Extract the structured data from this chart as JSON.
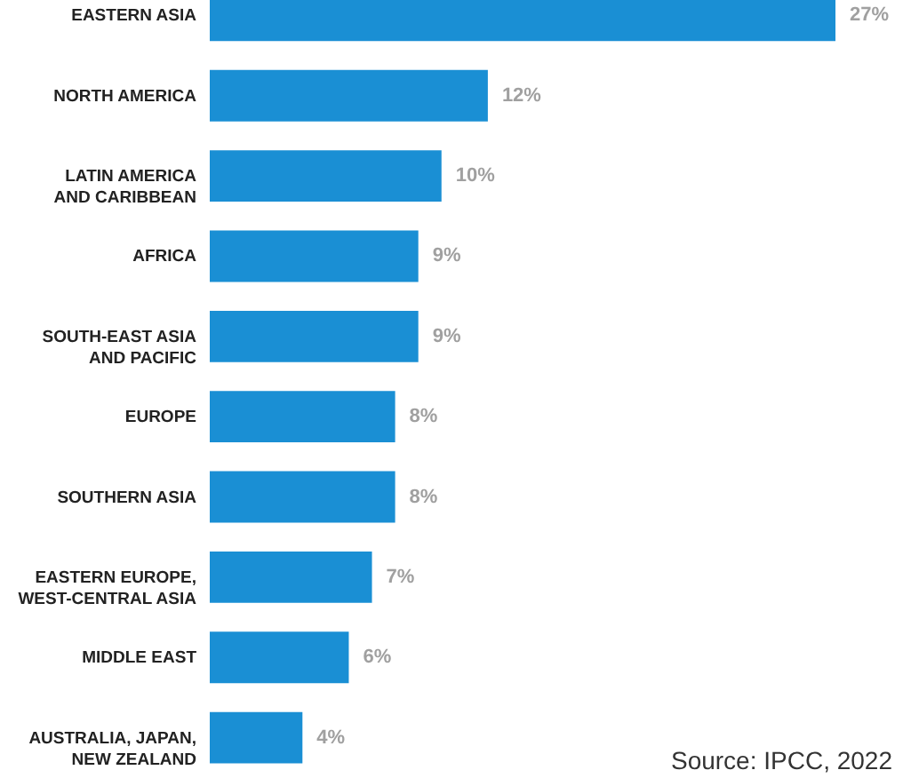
{
  "chart_data": {
    "type": "bar",
    "orientation": "horizontal",
    "categories": [
      "EASTERN ASIA",
      "NORTH AMERICA",
      "LATIN AMERICA\nAND CARIBBEAN",
      "AFRICA",
      "SOUTH-EAST ASIA\nAND PACIFIC",
      "EUROPE",
      "SOUTHERN ASIA",
      "EASTERN EUROPE,\nWEST-CENTRAL ASIA",
      "MIDDLE EAST",
      "AUSTRALIA, JAPAN,\nNEW ZEALAND"
    ],
    "values": [
      27,
      12,
      10,
      9,
      9,
      8,
      8,
      7,
      6,
      4
    ],
    "value_labels": [
      "27%",
      "12%",
      "10%",
      "9%",
      "9%",
      "8%",
      "8%",
      "7%",
      "6%",
      "4%"
    ],
    "color": "#1a8fd4",
    "annotations": [
      "Source: IPCC, 2022"
    ]
  }
}
